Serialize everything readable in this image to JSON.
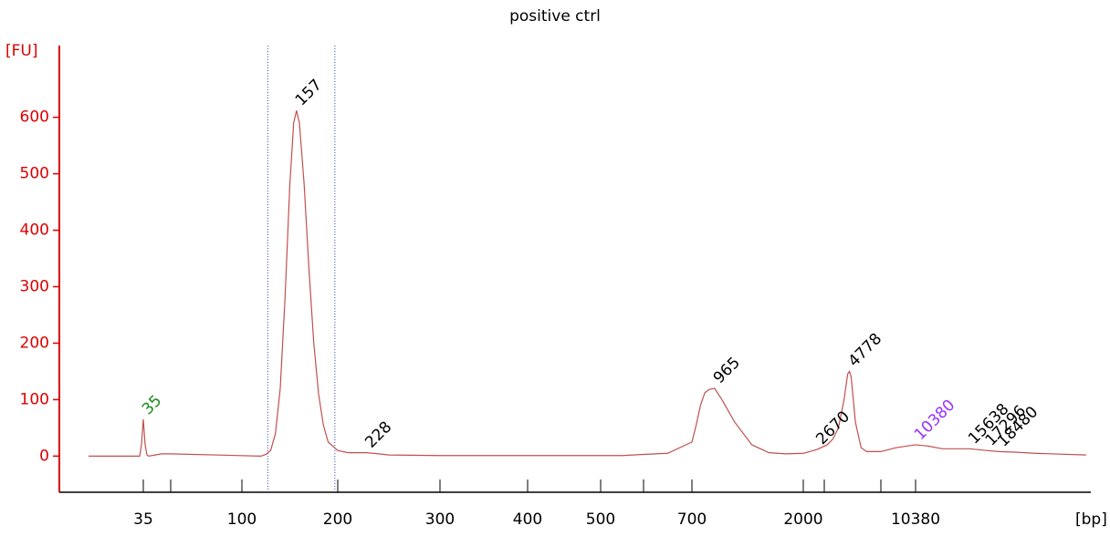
{
  "chart_data": {
    "type": "line",
    "title": "positive ctrl",
    "y_label": "[FU]",
    "x_label": "[bp]",
    "ylim": [
      -64,
      727
    ],
    "yticks": [
      0,
      100,
      200,
      300,
      400,
      500,
      600
    ],
    "xticks": [
      35,
      {
        "value": 50,
        "label": null
      },
      100,
      200,
      300,
      400,
      500,
      {
        "value": 600,
        "label": null
      },
      700,
      2000,
      {
        "value": 3000,
        "label": null
      },
      {
        "value": 7000,
        "label": null
      },
      10380
    ],
    "axis_color": "#dd0000",
    "series": [
      {
        "color": "#c0504d",
        "x": [
          5,
          33,
          34,
          35,
          36,
          37,
          38,
          45,
          50,
          120,
          125,
          130,
          135,
          140,
          145,
          150,
          154,
          157,
          160,
          165,
          170,
          175,
          180,
          185,
          190,
          200,
          210,
          228,
          240,
          250,
          300,
          400,
          550,
          600,
          650,
          700,
          750,
          800,
          850,
          900,
          965,
          1050,
          1200,
          1400,
          1600,
          1800,
          2000,
          2300,
          2670,
          3200,
          3600,
          4000,
          4400,
          4650,
          4778,
          4900,
          5200,
          5600,
          6000,
          7000,
          8500,
          10380,
          11500,
          13000,
          15638,
          17296,
          18480,
          20000,
          22000,
          27000
        ],
        "values": [
          0,
          0,
          20,
          65,
          20,
          2,
          0,
          4,
          4,
          0,
          3,
          10,
          40,
          120,
          280,
          480,
          590,
          612,
          590,
          480,
          330,
          200,
          110,
          55,
          25,
          10,
          6,
          6,
          4,
          2,
          1,
          1,
          1,
          3,
          5,
          25,
          55,
          90,
          112,
          118,
          120,
          100,
          60,
          20,
          6,
          4,
          5,
          8,
          12,
          20,
          30,
          50,
          100,
          145,
          150,
          140,
          60,
          15,
          8,
          8,
          15,
          20,
          18,
          13,
          13,
          10,
          8,
          7,
          5,
          2
        ]
      }
    ],
    "region": [
      127,
      197
    ],
    "peaks": [
      {
        "label": "35",
        "bp": 35,
        "fu": 65,
        "color": "#1a8a1a"
      },
      {
        "label": "157",
        "bp": 157,
        "fu": 612,
        "color": "#000000"
      },
      {
        "label": "228",
        "bp": 228,
        "fu": 6,
        "color": "#000000"
      },
      {
        "label": "965",
        "bp": 965,
        "fu": 120,
        "color": "#000000"
      },
      {
        "label": "2670",
        "bp": 2670,
        "fu": 12,
        "color": "#000000"
      },
      {
        "label": "4778",
        "bp": 4778,
        "fu": 150,
        "color": "#000000"
      },
      {
        "label": "10380",
        "bp": 10380,
        "fu": 20,
        "color": "#9b30ff"
      },
      {
        "label": "15638",
        "bp": 15638,
        "fu": 13,
        "color": "#000000"
      },
      {
        "label": "17296",
        "bp": 17296,
        "fu": 10,
        "color": "#000000"
      },
      {
        "label": "18480",
        "bp": 18480,
        "fu": 8,
        "color": "#000000"
      }
    ]
  }
}
